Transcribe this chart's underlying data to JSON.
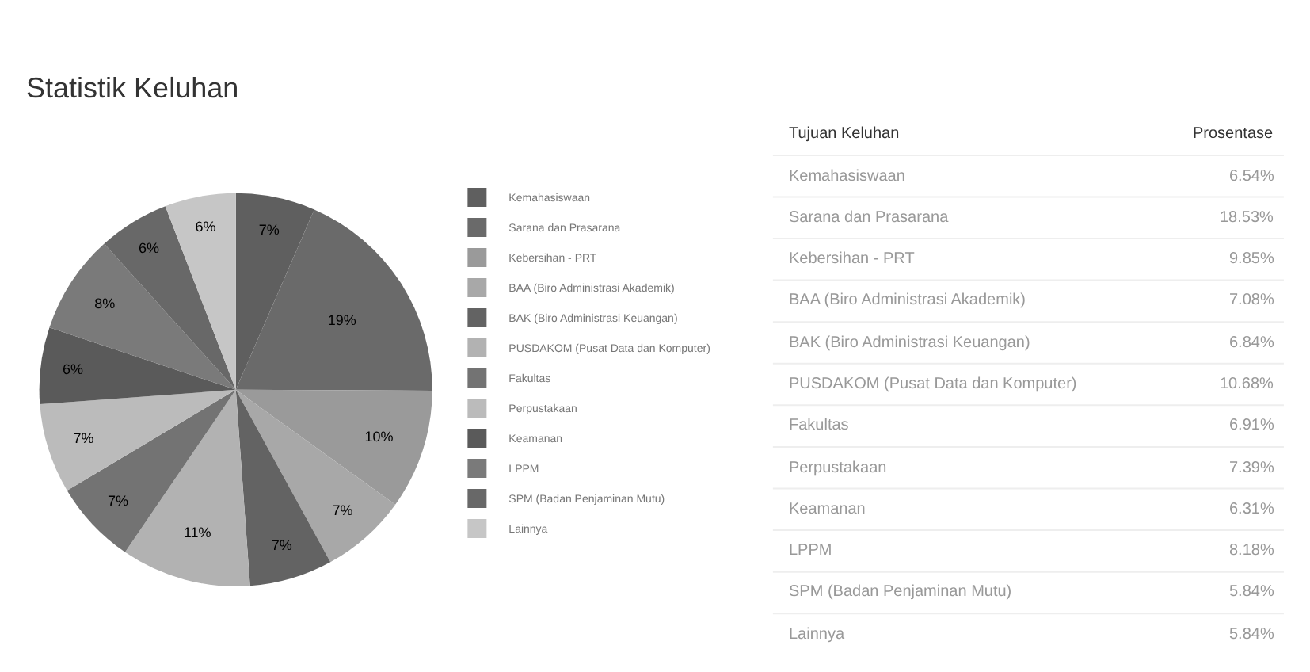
{
  "chart_data": {
    "type": "pie",
    "title": "Statistik Keluhan",
    "categories": [
      "Kemahasiswaan",
      "Sarana dan Prasarana",
      "Kebersihan - PRT",
      "BAA (Biro Administrasi Akademik)",
      "BAK (Biro Administrasi Keuangan)",
      "PUSDAKOM (Pusat Data dan Komputer)",
      "Fakultas",
      "Perpustakaan",
      "Keamanan",
      "LPPM",
      "SPM (Badan Penjaminan Mutu)",
      "Lainnya"
    ],
    "values": [
      6.54,
      18.53,
      9.85,
      7.08,
      6.84,
      10.68,
      6.91,
      7.39,
      6.31,
      8.18,
      5.84,
      5.84
    ],
    "colors": [
      "#5f5f5f",
      "#6a6a6a",
      "#9a9a9a",
      "#a8a8a8",
      "#636363",
      "#b2b2b2",
      "#737373",
      "#bbbbbb",
      "#5a5a5a",
      "#7a7a7a",
      "#686868",
      "#c6c6c6"
    ],
    "value_labels": [
      "7%",
      "19%",
      "10%",
      "7%",
      "7%",
      "11%",
      "7%",
      "7%",
      "6%",
      "8%",
      "6%",
      "6%"
    ],
    "annotations": [
      "Tujuan Keluhan",
      "Prosentase",
      "Kemahasiswaan",
      "6.54%",
      "Sarana dan Prasarana",
      "18.53%",
      "Kebersihan - PRT",
      "9.85%",
      "BAA (Biro Administrasi Akademik)",
      "7.08%",
      "BAK (Biro Administrasi Keuangan)",
      "6.84%",
      "PUSDAKOM (Pusat Data dan Komputer)",
      "10.68%",
      "Fakultas",
      "6.91%",
      "Perpustakaan",
      "7.39%",
      "Keamanan",
      "6.31%",
      "LPPM",
      "8.18%",
      "SPM (Badan Penjaminan Mutu)",
      "5.84%",
      "Lainnya",
      "5.84%"
    ],
    "legend": "right"
  }
}
